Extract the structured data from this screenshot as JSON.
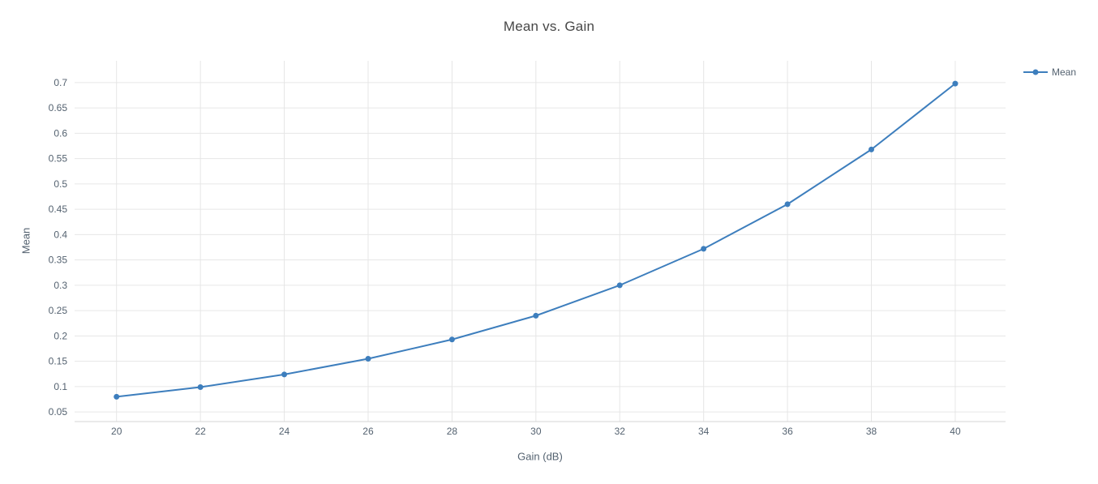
{
  "chart_data": {
    "type": "line",
    "title": "Mean vs. Gain",
    "xlabel": "Gain (dB)",
    "ylabel": "Mean",
    "x": [
      20,
      22,
      24,
      26,
      28,
      30,
      32,
      34,
      36,
      38,
      40
    ],
    "series": [
      {
        "name": "Mean",
        "values": [
          0.08,
          0.099,
          0.124,
          0.155,
          0.193,
          0.24,
          0.3,
          0.372,
          0.46,
          0.568,
          0.698
        ]
      }
    ],
    "xlim": [
      19.0,
      41.2
    ],
    "ylim": [
      0.031,
      0.743
    ],
    "x_ticks": [
      20,
      22,
      24,
      26,
      28,
      30,
      32,
      34,
      36,
      38,
      40
    ],
    "x_tick_labels": [
      "20",
      "22",
      "24",
      "26",
      "28",
      "30",
      "32",
      "34",
      "36",
      "38",
      "40"
    ],
    "y_ticks": [
      0.05,
      0.1,
      0.15,
      0.2,
      0.25,
      0.3,
      0.35,
      0.4,
      0.45,
      0.5,
      0.55,
      0.6,
      0.65,
      0.7
    ],
    "y_tick_labels": [
      "0.05",
      "0.1",
      "0.15",
      "0.2",
      "0.25",
      "0.3",
      "0.35",
      "0.4",
      "0.45",
      "0.5",
      "0.55",
      "0.6",
      "0.65",
      "0.7"
    ],
    "grid": true,
    "legend_position": "top-right",
    "colors": {
      "line": "#3d7ebd",
      "grid": "#e6e6e6",
      "axis_line": "#d4d4d4",
      "tick_text": "#546270",
      "title_text": "#474747",
      "background": "#ffffff"
    }
  }
}
